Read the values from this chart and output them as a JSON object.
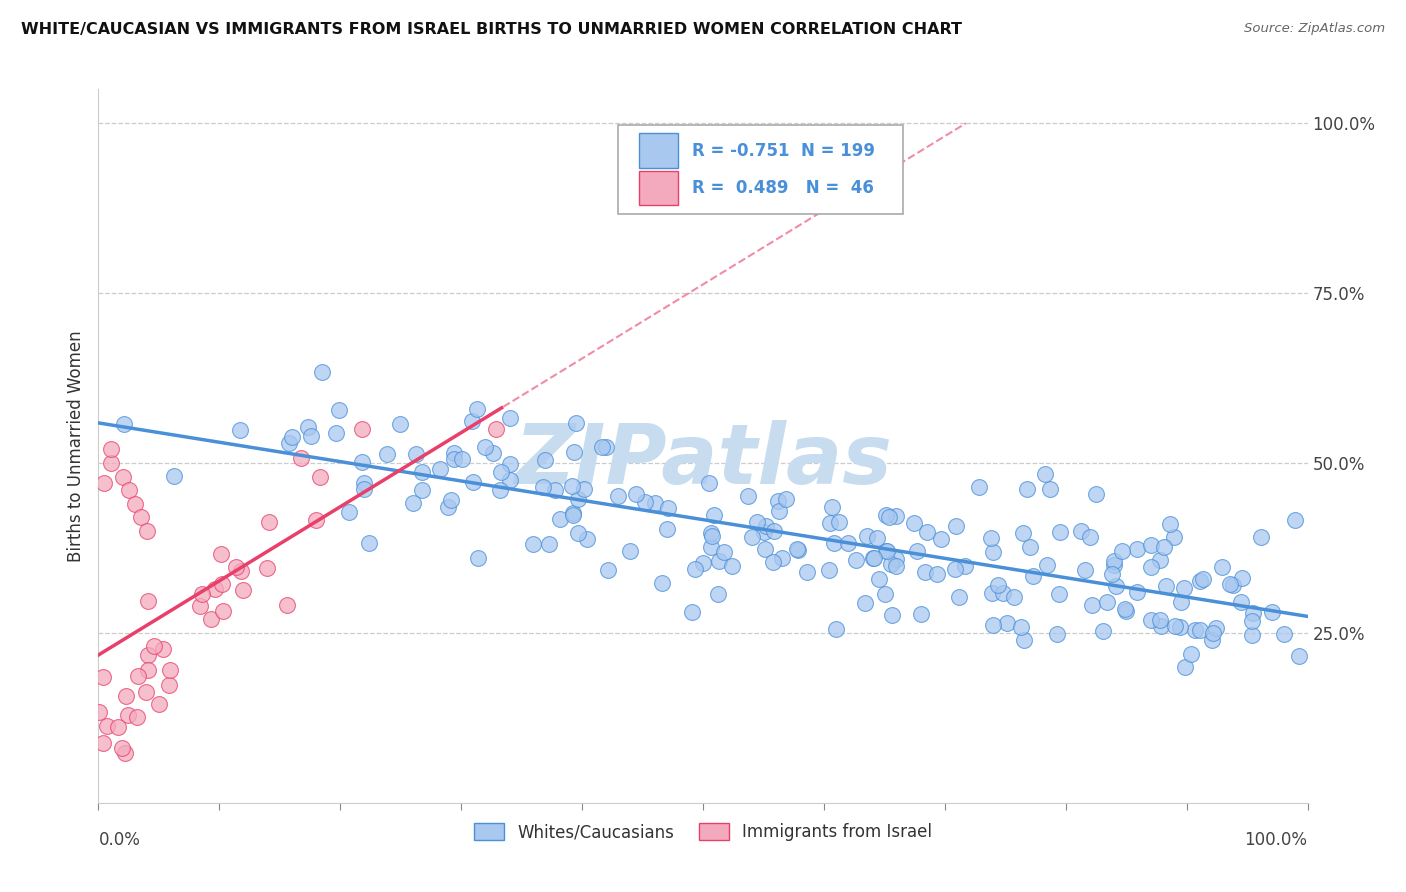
{
  "title": "WHITE/CAUCASIAN VS IMMIGRANTS FROM ISRAEL BIRTHS TO UNMARRIED WOMEN CORRELATION CHART",
  "source": "Source: ZipAtlas.com",
  "ylabel": "Births to Unmarried Women",
  "blue_R": "-0.751",
  "blue_N": "199",
  "pink_R": "0.489",
  "pink_N": "46",
  "legend_label_blue": "Whites/Caucasians",
  "legend_label_pink": "Immigrants from Israel",
  "blue_color": "#A8C8F0",
  "pink_color": "#F4AABE",
  "trend_blue": "#4A90D9",
  "trend_pink": "#E8406A",
  "watermark_color": "#C8DCF0",
  "grid_color": "#CCCCCC",
  "blue_seed": 12,
  "pink_seed": 7
}
